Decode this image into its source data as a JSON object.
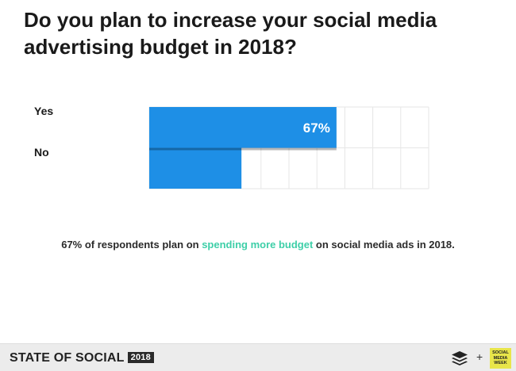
{
  "title": "Do you plan to increase your social media advertising budget in 2018?",
  "chart_data": {
    "type": "bar",
    "orientation": "horizontal",
    "categories": [
      "Yes",
      "No"
    ],
    "values": [
      67,
      33
    ],
    "data_labels": [
      "67%",
      ""
    ],
    "xlim": [
      0,
      100
    ],
    "grid": true,
    "bar_color": "#1e8fe6"
  },
  "caption": {
    "part1": "67% of respondents plan on ",
    "highlight": "spending more budget",
    "part2": " on social media ads in 2018."
  },
  "footer": {
    "brand": "STATE OF SOCIAL",
    "year": "2018",
    "plus": "+",
    "logo_text": "SOCIAL MEDIA WEEK"
  },
  "colors": {
    "accent": "#3ecfa8",
    "bar": "#1e8fe6",
    "footer_bg": "#ececec"
  }
}
